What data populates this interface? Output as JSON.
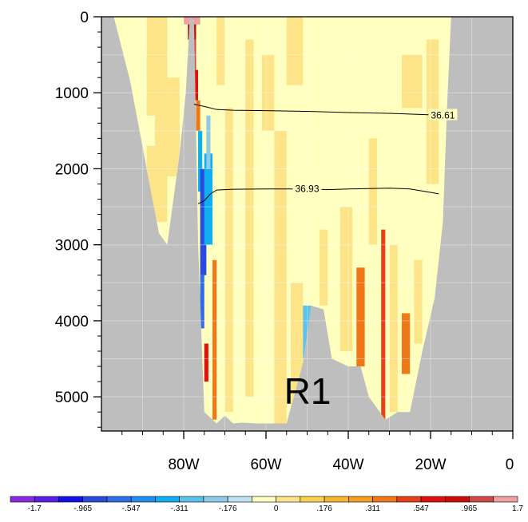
{
  "chart_data": {
    "type": "heatmap",
    "title": "",
    "xlabel": "",
    "ylabel": "",
    "x_axis": {
      "range": [
        -100,
        0
      ],
      "ticks": [
        -80,
        -60,
        -40,
        -20,
        0
      ],
      "tick_labels": [
        "80W",
        "60W",
        "40W",
        "20W",
        "0"
      ]
    },
    "y_axis": {
      "range": [
        0,
        5450
      ],
      "reversed": true,
      "ticks": [
        0,
        1000,
        2000,
        3000,
        4000,
        5000
      ],
      "tick_labels": [
        "0",
        "1000",
        "2000",
        "3000",
        "4000",
        "5000"
      ]
    },
    "region_label": "R1",
    "land_color": "#bebebe",
    "colorbar": {
      "colors": [
        "#8a2be2",
        "#5a1ee6",
        "#1410e6",
        "#2a4adc",
        "#2a6ee8",
        "#1f8ef0",
        "#10aef0",
        "#5ac2ee",
        "#8fcbe8",
        "#bfe3f5",
        "#ffffc0",
        "#fde488",
        "#fad050",
        "#f8b530",
        "#f5a020",
        "#f07818",
        "#e84018",
        "#e01010",
        "#cc0a0a",
        "#d04848",
        "#f0a0a0"
      ],
      "labels": [
        "-1.7",
        "-.965",
        "-.547",
        "-.311",
        "-.176",
        "0",
        ".176",
        ".311",
        ".547",
        ".965",
        "1.7"
      ]
    },
    "contours": [
      {
        "label": "36.61",
        "label_lon": -17,
        "points": [
          [
            -77.5,
            1150
          ],
          [
            -75,
            1180
          ],
          [
            -72,
            1220
          ],
          [
            -68,
            1230
          ],
          [
            -60,
            1235
          ],
          [
            -50,
            1245
          ],
          [
            -40,
            1260
          ],
          [
            -30,
            1270
          ],
          [
            -20,
            1290
          ],
          [
            -15,
            1300
          ]
        ]
      },
      {
        "label": "36.93",
        "label_lon": -50,
        "points": [
          [
            -76.5,
            2460
          ],
          [
            -75,
            2420
          ],
          [
            -73.5,
            2330
          ],
          [
            -72,
            2280
          ],
          [
            -68,
            2270
          ],
          [
            -60,
            2265
          ],
          [
            -50,
            2265
          ],
          [
            -45,
            2275
          ],
          [
            -40,
            2265
          ],
          [
            -30,
            2255
          ],
          [
            -25,
            2265
          ],
          [
            -20,
            2310
          ],
          [
            -18,
            2330
          ]
        ]
      }
    ],
    "field": {
      "description_units": "lon (deg E), depth (m)",
      "bottom_profile": [
        [
          -100,
          0
        ],
        [
          -97,
          0
        ],
        [
          -93,
          850
        ],
        [
          -89,
          2000
        ],
        [
          -86,
          2850
        ],
        [
          -84,
          3000
        ],
        [
          -81,
          1800
        ],
        [
          -79.5,
          1000
        ],
        [
          -78.5,
          0
        ],
        [
          -77.5,
          50
        ],
        [
          -76.5,
          3000
        ],
        [
          -75,
          5200
        ],
        [
          -72,
          5350
        ],
        [
          -70,
          5250
        ],
        [
          -68,
          5350
        ],
        [
          -66,
          5340
        ],
        [
          -62,
          5350
        ],
        [
          -55,
          5350
        ],
        [
          -51,
          4550
        ],
        [
          -49,
          3800
        ],
        [
          -46,
          3850
        ],
        [
          -44,
          4500
        ],
        [
          -40,
          4600
        ],
        [
          -37,
          4600
        ],
        [
          -35,
          5000
        ],
        [
          -31,
          5300
        ],
        [
          -28,
          5200
        ],
        [
          -25,
          5200
        ],
        [
          -22,
          4400
        ],
        [
          -19,
          3700
        ],
        [
          -17,
          2700
        ],
        [
          -16,
          1200
        ],
        [
          -15,
          0
        ],
        [
          0,
          0
        ]
      ],
      "patches": [
        {
          "lon": [
            -89,
            -84
          ],
          "depth": [
            0,
            2700
          ],
          "value": 0.05
        },
        {
          "lon": [
            -90,
            -87
          ],
          "depth": [
            1300,
            1700
          ],
          "value": -0.05
        },
        {
          "lon": [
            -86.5,
            -85
          ],
          "depth": [
            1500,
            2700
          ],
          "value": 0.05
        },
        {
          "lon": [
            -84,
            -81
          ],
          "depth": [
            800,
            2100
          ],
          "value": 0.05
        },
        {
          "lon": [
            -92,
            -89
          ],
          "depth": [
            0,
            400
          ],
          "value": -0.05
        },
        {
          "lon": [
            -80,
            -76
          ],
          "depth": [
            0,
            100
          ],
          "value": 1.7
        },
        {
          "lon": [
            -79,
            -77
          ],
          "depth": [
            100,
            300
          ],
          "value": 0.9
        },
        {
          "lon": [
            -78.5,
            -77
          ],
          "depth": [
            300,
            700
          ],
          "value": 1.2
        },
        {
          "lon": [
            -77.5,
            -76.5
          ],
          "depth": [
            700,
            1100
          ],
          "value": 0.7
        },
        {
          "lon": [
            -77,
            -76
          ],
          "depth": [
            1100,
            1500
          ],
          "value": 0.4
        },
        {
          "lon": [
            -76.5,
            -75.5
          ],
          "depth": [
            1500,
            2300
          ],
          "value": -0.4
        },
        {
          "lon": [
            -76,
            -74.5
          ],
          "depth": [
            2000,
            3400
          ],
          "value": -0.9
        },
        {
          "lon": [
            -75,
            -73
          ],
          "depth": [
            1800,
            3000
          ],
          "value": -0.35
        },
        {
          "lon": [
            -74.5,
            -73.5
          ],
          "depth": [
            1300,
            2000
          ],
          "value": -0.2
        },
        {
          "lon": [
            -76,
            -75
          ],
          "depth": [
            3400,
            4100
          ],
          "value": -0.6
        },
        {
          "lon": [
            -75,
            -74
          ],
          "depth": [
            4300,
            4800
          ],
          "value": 0.6
        },
        {
          "lon": [
            -73,
            -72
          ],
          "depth": [
            3200,
            5300
          ],
          "value": 0.4
        },
        {
          "lon": [
            -70,
            -68
          ],
          "depth": [
            1200,
            5200
          ],
          "value": 0.05
        },
        {
          "lon": [
            -65,
            -63
          ],
          "depth": [
            300,
            5000
          ],
          "value": 0.05
        },
        {
          "lon": [
            -61,
            -58
          ],
          "depth": [
            500,
            1500
          ],
          "value": 0.05
        },
        {
          "lon": [
            -55,
            -51
          ],
          "depth": [
            0,
            900
          ],
          "value": 0.05
        },
        {
          "lon": [
            -58,
            -55
          ],
          "depth": [
            1500,
            5350
          ],
          "value": 0.05
        },
        {
          "lon": [
            -54,
            -51
          ],
          "depth": [
            3500,
            5350
          ],
          "value": 0.05
        },
        {
          "lon": [
            -51,
            -49
          ],
          "depth": [
            3800,
            4500
          ],
          "value": -0.3
        },
        {
          "lon": [
            -47,
            -45
          ],
          "depth": [
            2800,
            3800
          ],
          "value": 0.05
        },
        {
          "lon": [
            -42,
            -39
          ],
          "depth": [
            2500,
            4400
          ],
          "value": 0.05
        },
        {
          "lon": [
            -38,
            -36
          ],
          "depth": [
            3300,
            4600
          ],
          "value": 0.4
        },
        {
          "lon": [
            -32,
            -31
          ],
          "depth": [
            2800,
            5300
          ],
          "value": 0.5
        },
        {
          "lon": [
            -30,
            -28
          ],
          "depth": [
            3000,
            5200
          ],
          "value": 0.05
        },
        {
          "lon": [
            -27,
            -25
          ],
          "depth": [
            3900,
            4700
          ],
          "value": 0.4
        },
        {
          "lon": [
            -35,
            -33
          ],
          "depth": [
            1600,
            3000
          ],
          "value": 0.05
        },
        {
          "lon": [
            -27,
            -22
          ],
          "depth": [
            500,
            1200
          ],
          "value": 0.05
        },
        {
          "lon": [
            -21,
            -18
          ],
          "depth": [
            300,
            2200
          ],
          "value": 0.05
        },
        {
          "lon": [
            -24,
            -22
          ],
          "depth": [
            3200,
            4300
          ],
          "value": 0.05
        },
        {
          "lon": [
            -79,
            -77
          ],
          "depth": [
            2600,
            3300
          ],
          "value": -0.2
        },
        {
          "lon": [
            -72,
            -70
          ],
          "depth": [
            0,
            900
          ],
          "value": 0.05
        }
      ]
    }
  }
}
